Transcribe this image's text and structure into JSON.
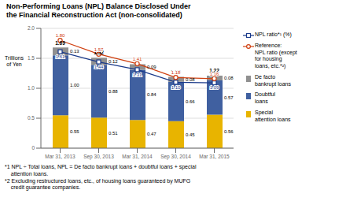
{
  "chart_data": {
    "type": "bar",
    "title": "Non-Performing Loans (NPL) Balance Disclosed Under\nthe Financial Reconstruction Act (non-consolidated)",
    "y_label": "Trillions\nof Yen",
    "categories": [
      "Mar 31, 2013",
      "Sep 30, 2013",
      "Mar 31, 2014",
      "Sep 30, 2014",
      "Mar 31, 2015"
    ],
    "stacked": true,
    "data_labels": true,
    "grid": true,
    "ylim": [
      0,
      2.0
    ],
    "yticks": [
      0,
      0.5,
      {
        "value": 1.0,
        "label": "1.0"
      },
      1.5,
      {
        "value": 2.0,
        "label": "2.0"
      }
    ],
    "series": [
      {
        "name": "Special\nattention loans",
        "type": "bar",
        "color": "#e8b400",
        "values": [
          0.55,
          0.51,
          0.47,
          0.45,
          0.56
        ],
        "value_labels": [
          "0.55",
          "0.51",
          "0.47",
          "0.45",
          "0.56"
        ]
      },
      {
        "name": "Doubtful\nloans",
        "type": "bar",
        "color": "#4060a0",
        "values": [
          1.0,
          0.88,
          0.84,
          0.66,
          0.57
        ],
        "value_labels": [
          "1.00",
          "0.88",
          "0.84",
          "0.66",
          "0.57"
        ]
      },
      {
        "name": "De facto\nbankrupt loans",
        "type": "bar",
        "color": "#909090",
        "values": [
          0.13,
          0.12,
          0.09,
          0.08,
          0.08
        ],
        "value_labels": [
          "0.13",
          "0.12",
          "0.09",
          "0.08",
          "0.08"
        ]
      },
      {
        "name": "NPL ratio*¹ (%)",
        "type": "line",
        "color": "#1a3a8a",
        "marker": "square",
        "values": [
          1.61,
          1.44,
          1.31,
          1.1,
          1.09
        ],
        "value_labels": [
          "1.61",
          "1.44",
          "1.31",
          "1.10",
          "1.09"
        ]
      },
      {
        "name": "Reference:\nNPL ratio (except\nfor housing\nloans, etc.*²)",
        "type": "line",
        "color": "#d04010",
        "marker": "circle",
        "values": [
          1.8,
          1.57,
          1.41,
          1.18,
          1.16
        ],
        "value_labels": [
          "1.80",
          "1.57",
          "1.41",
          "1.18",
          "1.16"
        ]
      }
    ],
    "totals": [
      1.69,
      1.52,
      1.41,
      1.2,
      1.22
    ],
    "total_labels": [
      "1.69",
      "1.52",
      "1.41",
      "1.20",
      "1.22"
    ],
    "footnotes": [
      "*1 NPL ÷ Total loans, NPL = De facto bankrupt loans + doubtful loans + special",
      "    attention loans.",
      "*2 Excluding restructured loans, etc., of housing loans guaranteed by MUFG",
      "    credit guarantee companies."
    ]
  }
}
